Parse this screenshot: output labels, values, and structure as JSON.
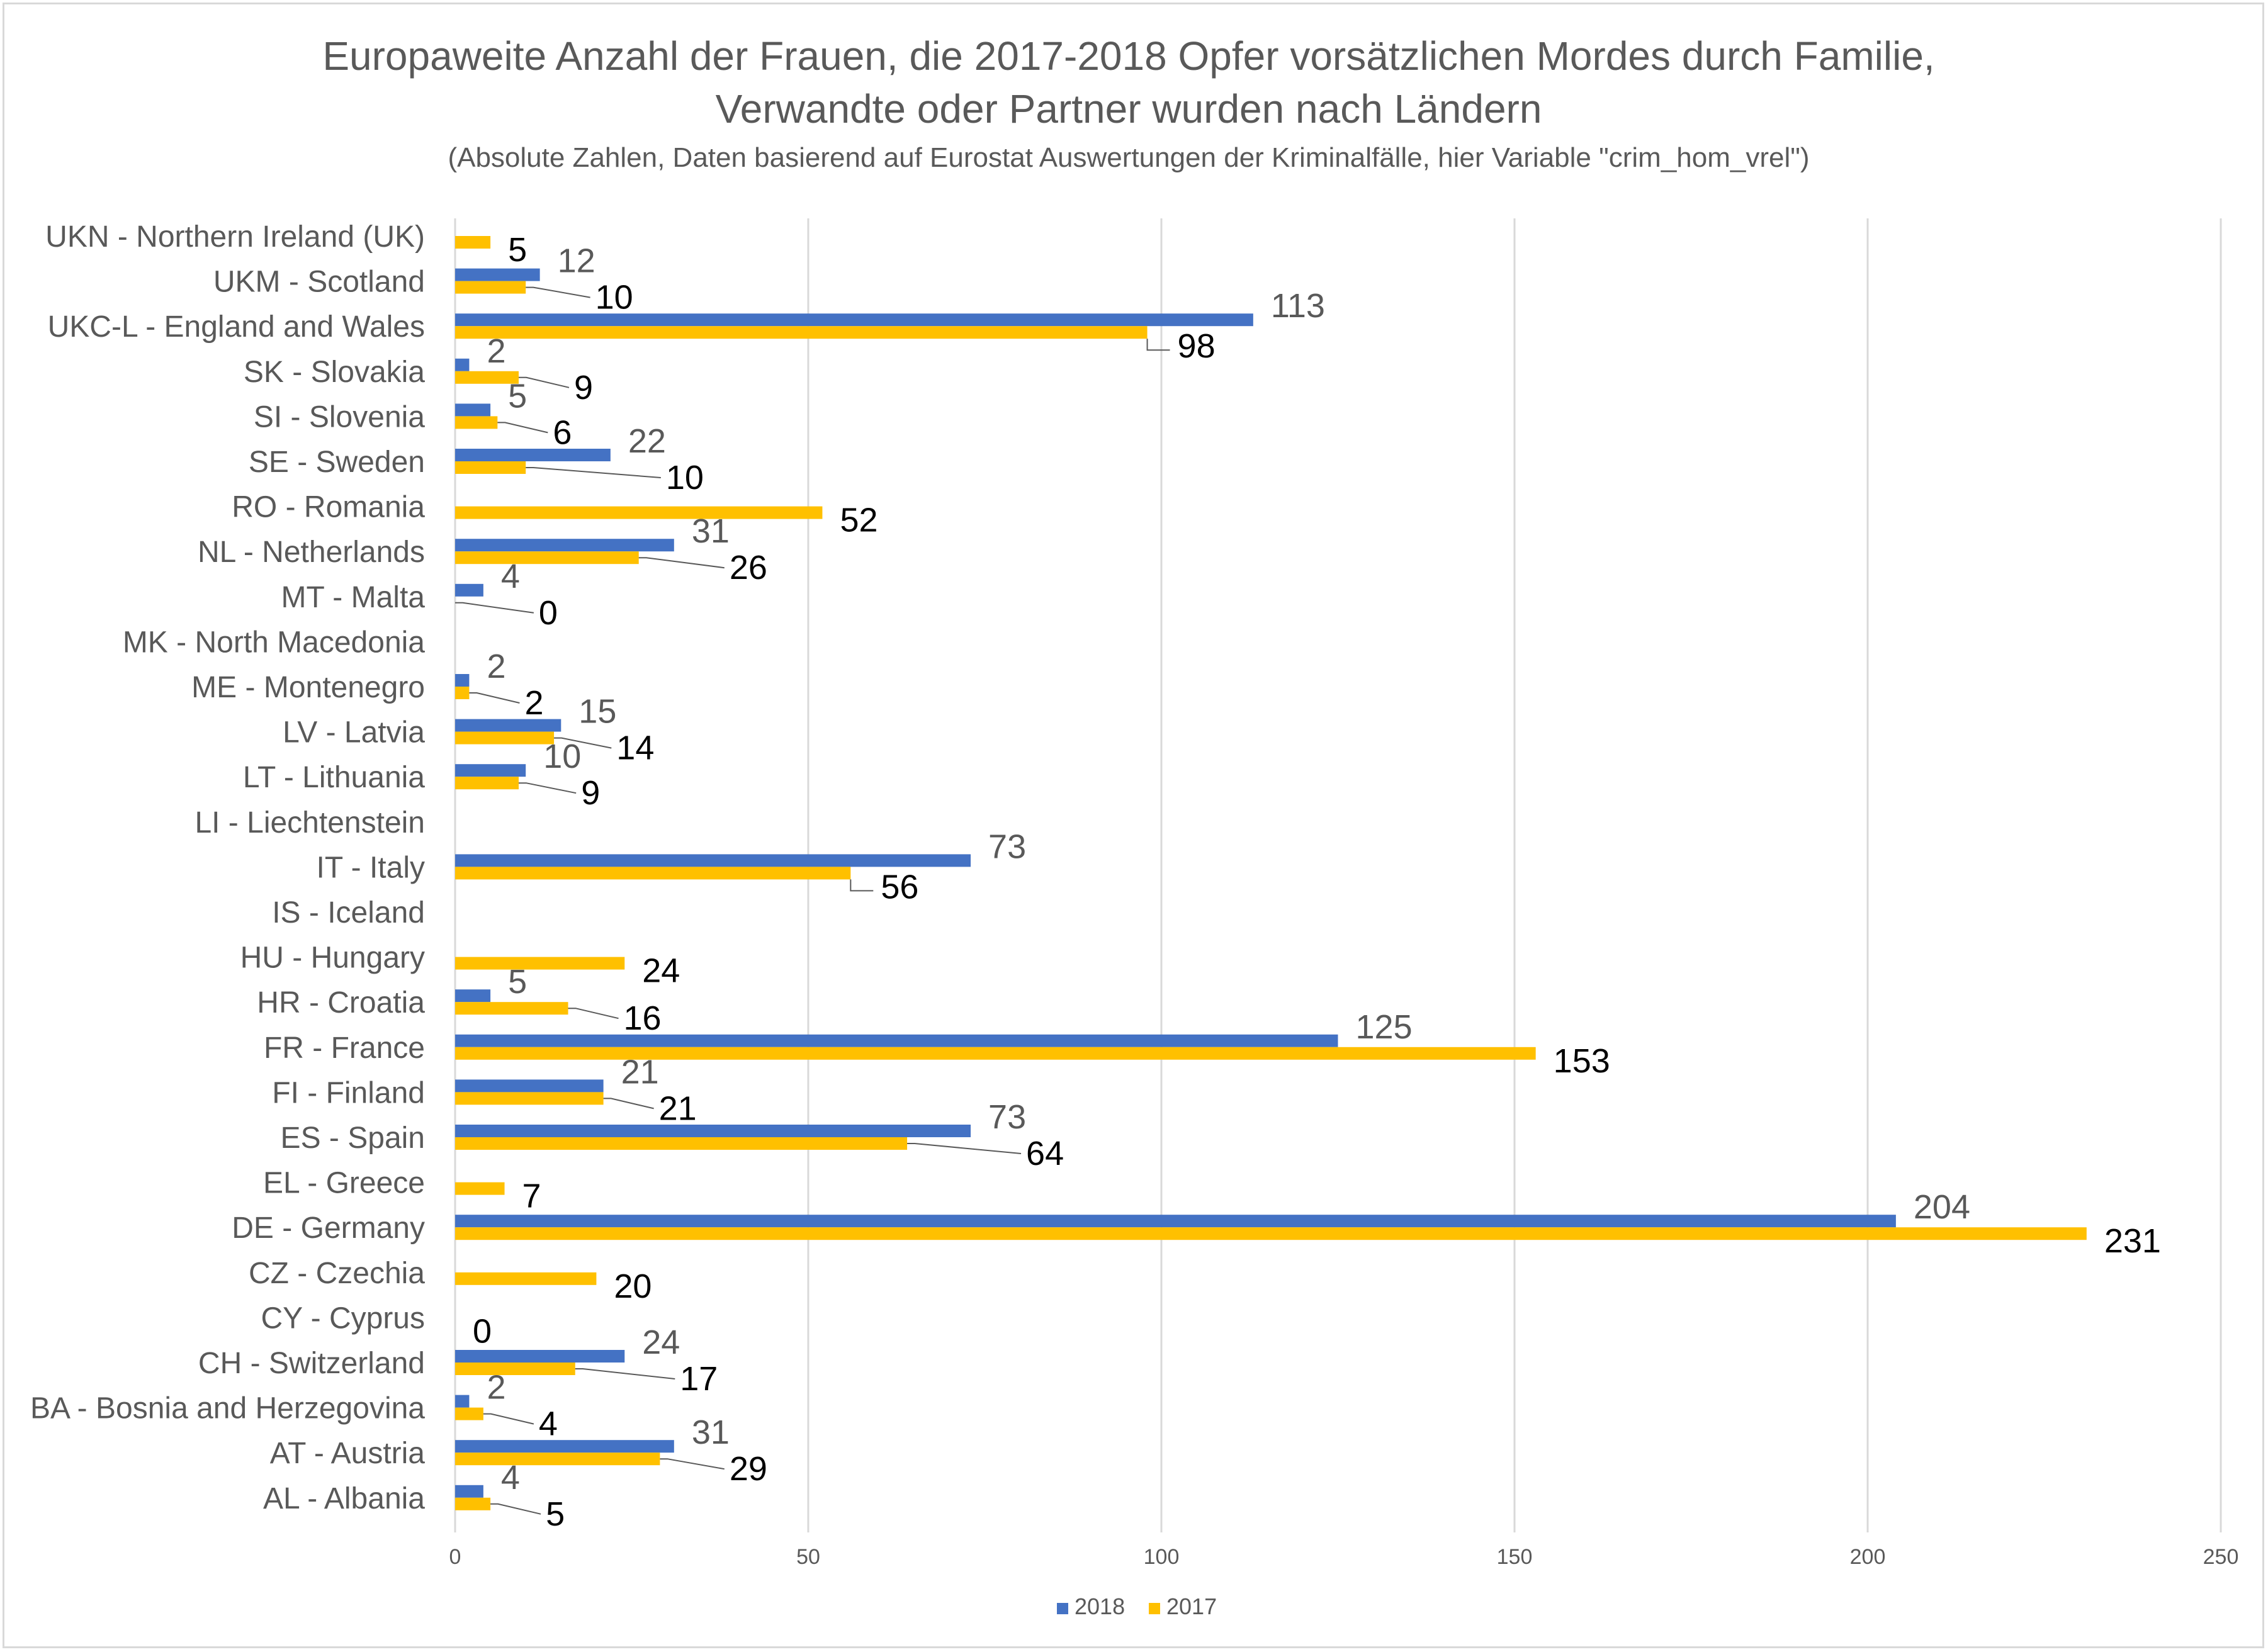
{
  "chart_data": {
    "type": "bar",
    "orientation": "horizontal",
    "title": [
      "Europaweite Anzahl der Frauen, die 2017-2018  Opfer vorsätzlichen Mordes durch Familie,",
      "Verwandte oder Partner wurden nach Ländern"
    ],
    "subtitle": "(Absolute Zahlen, Daten basierend auf Eurostat Auswertungen der Kriminalfälle, hier Variable \"crim_hom_vrel\")",
    "xlabel": "",
    "ylabel": "",
    "xlim": [
      0,
      250
    ],
    "xticks": [
      "0",
      "50",
      "100",
      "150",
      "200",
      "250"
    ],
    "grid": true,
    "legend_position": "bottom",
    "categories": [
      "UKN - Northern Ireland (UK)",
      "UKM - Scotland",
      "UKC-L - England and Wales",
      "SK - Slovakia",
      "SI - Slovenia",
      "SE - Sweden",
      "RO - Romania",
      "NL - Netherlands",
      "MT - Malta",
      "MK - North Macedonia",
      "ME - Montenegro",
      "LV - Latvia",
      "LT - Lithuania",
      "LI - Liechtenstein",
      "IT - Italy",
      "IS - Iceland",
      "HU - Hungary",
      "HR - Croatia",
      "FR - France",
      "FI - Finland",
      "ES - Spain",
      "EL - Greece",
      "DE - Germany",
      "CZ - Czechia",
      "CY - Cyprus",
      "CH - Switzerland",
      "BA - Bosnia and Herzegovina",
      "AT - Austria",
      "AL - Albania"
    ],
    "series": [
      {
        "name": "2018",
        "color": "#4472c4",
        "label_color": "#595959",
        "values": [
          null,
          12,
          113,
          2,
          5,
          22,
          null,
          31,
          4,
          null,
          2,
          15,
          10,
          null,
          73,
          null,
          null,
          5,
          125,
          21,
          73,
          null,
          204,
          null,
          null,
          24,
          2,
          31,
          4
        ]
      },
      {
        "name": "2017",
        "color": "#ffc000",
        "label_color": "#000000",
        "values": [
          5,
          10,
          98,
          9,
          6,
          10,
          52,
          26,
          0,
          null,
          2,
          14,
          9,
          null,
          56,
          null,
          24,
          16,
          153,
          21,
          64,
          7,
          231,
          20,
          0,
          17,
          4,
          29,
          5
        ]
      }
    ]
  }
}
